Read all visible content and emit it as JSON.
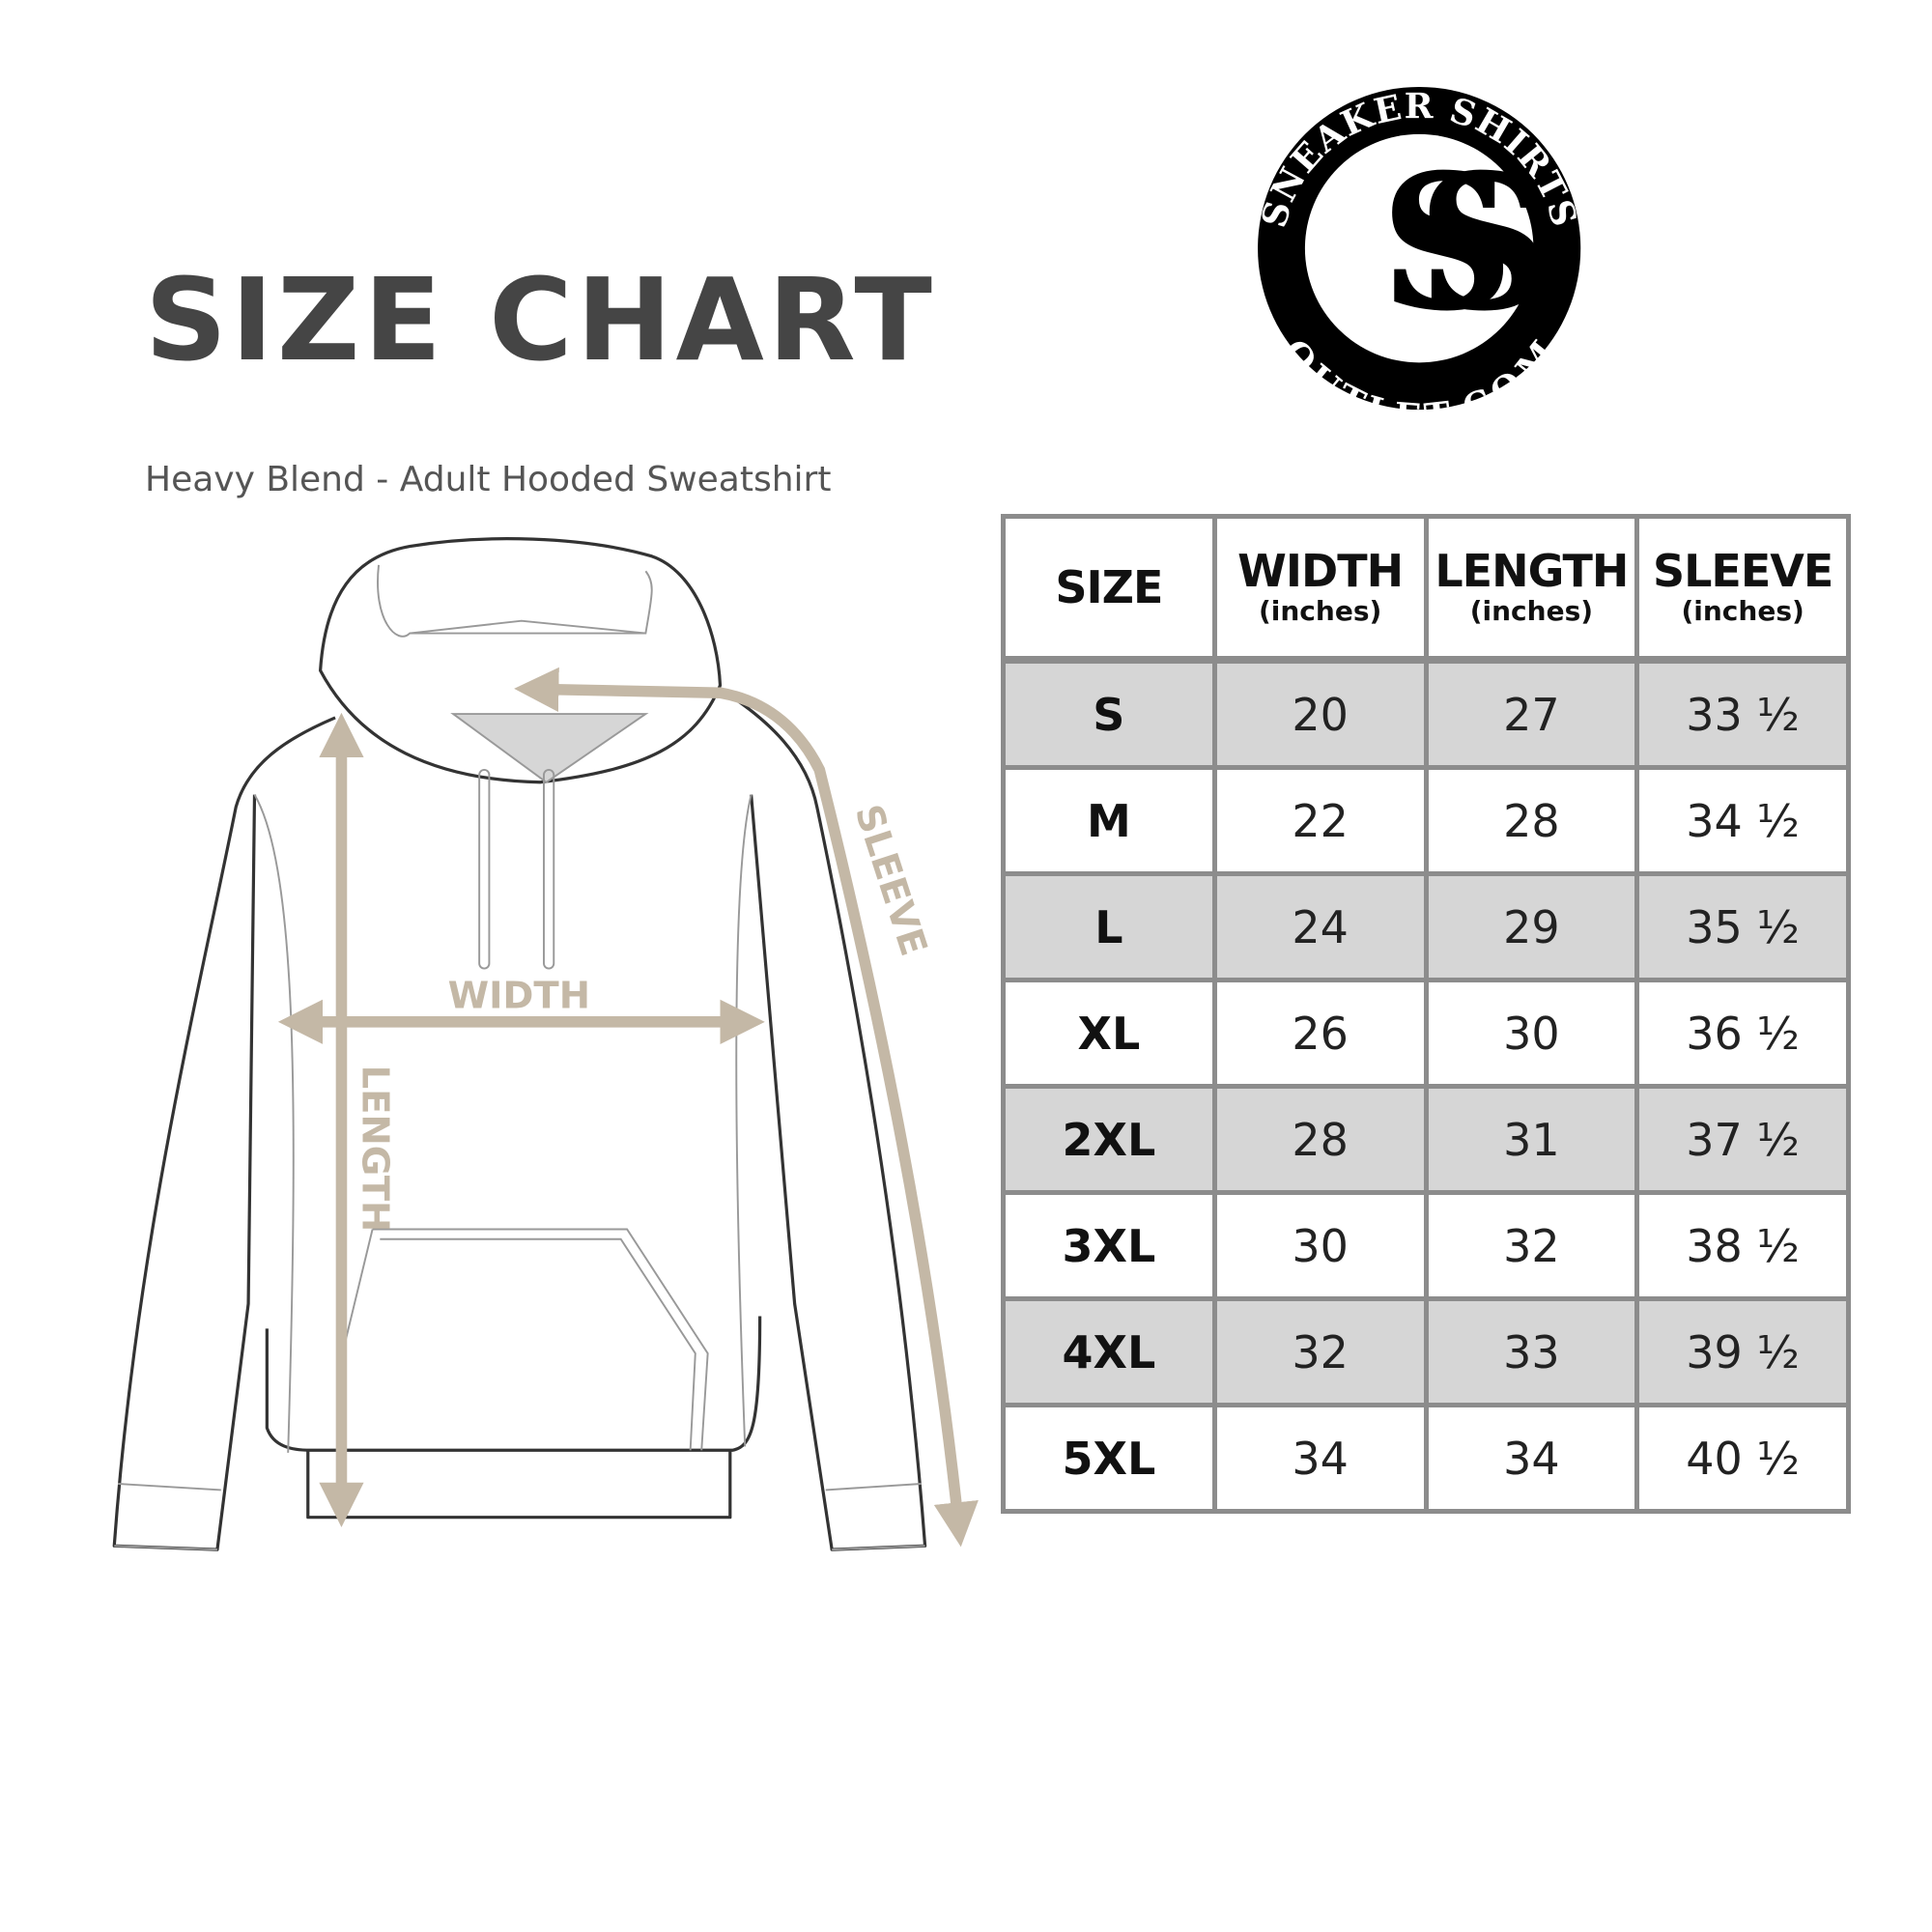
{
  "header": {
    "title": "SIZE CHART",
    "subtitle": "Heavy Blend - Adult Hooded Sweatshirt"
  },
  "logo": {
    "top_text": "SNEAKER SHIRTS",
    "bottom_text": "OUTLET.COM",
    "monogram": "SS"
  },
  "diagram": {
    "width_label": "WIDTH",
    "length_label": "LENGTH",
    "sleeve_label": "SLEEVE",
    "arrow_color": "#c4b8a6",
    "outline_color": "#333333"
  },
  "table": {
    "columns": [
      {
        "label": "SIZE",
        "unit": ""
      },
      {
        "label": "WIDTH",
        "unit": "(inches)"
      },
      {
        "label": "LENGTH",
        "unit": "(inches)"
      },
      {
        "label": "SLEEVE",
        "unit": "(inches)"
      }
    ],
    "rows": [
      [
        "S",
        "20",
        "27",
        "33 ½"
      ],
      [
        "M",
        "22",
        "28",
        "34 ½"
      ],
      [
        "L",
        "24",
        "29",
        "35 ½"
      ],
      [
        "XL",
        "26",
        "30",
        "36 ½"
      ],
      [
        "2XL",
        "28",
        "31",
        "37 ½"
      ],
      [
        "3XL",
        "30",
        "32",
        "38 ½"
      ],
      [
        "4XL",
        "32",
        "33",
        "39 ½"
      ],
      [
        "5XL",
        "34",
        "34",
        "40 ½"
      ]
    ],
    "stripe_color": "#d6d6d6",
    "border_color": "#8c8c8c"
  }
}
